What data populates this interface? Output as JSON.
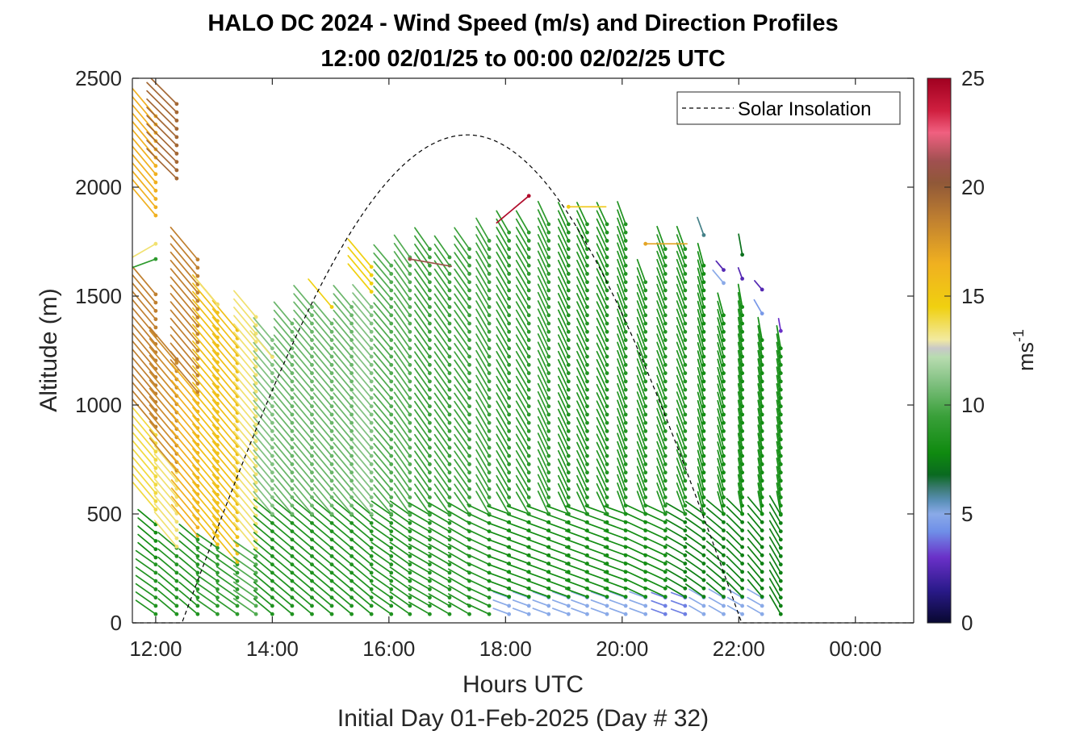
{
  "chart_data": {
    "type": "wind-barb-profile",
    "title": "HALO DC 2024 - Wind Speed (m/s) and Direction Profiles",
    "subtitle": "12:00 02/01/25 to 00:00 02/02/25  UTC",
    "xlabel": "Hours UTC",
    "xlabel2": "Initial Day 01-Feb-2025 (Day # 32)",
    "ylabel": "Altitude (m)",
    "xlim": [
      11.6,
      25.0
    ],
    "ylim": [
      0,
      2500
    ],
    "x_ticks": [
      {
        "value": 12,
        "label": "12:00"
      },
      {
        "value": 14,
        "label": "14:00"
      },
      {
        "value": 16,
        "label": "16:00"
      },
      {
        "value": 18,
        "label": "18:00"
      },
      {
        "value": 20,
        "label": "20:00"
      },
      {
        "value": 22,
        "label": "22:00"
      },
      {
        "value": 24,
        "label": "00:00"
      }
    ],
    "y_ticks": [
      {
        "value": 0,
        "label": "0"
      },
      {
        "value": 500,
        "label": "500"
      },
      {
        "value": 1000,
        "label": "1000"
      },
      {
        "value": 1500,
        "label": "1500"
      },
      {
        "value": 2000,
        "label": "2000"
      },
      {
        "value": 2500,
        "label": "2500"
      }
    ],
    "colorbar": {
      "label": "ms",
      "label_exp": "-1",
      "range": [
        0,
        25
      ],
      "ticks": [
        {
          "value": 0,
          "label": "0"
        },
        {
          "value": 5,
          "label": "5"
        },
        {
          "value": 10,
          "label": "10"
        },
        {
          "value": 15,
          "label": "15"
        },
        {
          "value": 20,
          "label": "20"
        },
        {
          "value": 25,
          "label": "25"
        }
      ],
      "stops": [
        [
          0,
          "#080830"
        ],
        [
          1.5,
          "#2a1a8a"
        ],
        [
          3,
          "#6a30c8"
        ],
        [
          4.2,
          "#6f8fe8"
        ],
        [
          5,
          "#8aaae8"
        ],
        [
          5.6,
          "#5a90b8"
        ],
        [
          6.2,
          "#3a7a70"
        ],
        [
          6.8,
          "#0a6a20"
        ],
        [
          7.8,
          "#0f8a0f"
        ],
        [
          9.5,
          "#3aa03a"
        ],
        [
          11,
          "#80c080"
        ],
        [
          12.2,
          "#b8dcb0"
        ],
        [
          12.6,
          "#c8c8c8"
        ],
        [
          13,
          "#f2eaa0"
        ],
        [
          14.5,
          "#f0d010"
        ],
        [
          16.5,
          "#f0b020"
        ],
        [
          18.5,
          "#c08030"
        ],
        [
          20.2,
          "#905838"
        ],
        [
          21.2,
          "#a05050"
        ],
        [
          22.5,
          "#f06080"
        ],
        [
          23.5,
          "#d02040"
        ],
        [
          25,
          "#a00020"
        ]
      ]
    },
    "legend": {
      "entries": [
        "Solar Insolation"
      ],
      "placement": "top-right"
    },
    "insolation": {
      "sunrise": 12.45,
      "sunset": 22.05,
      "peak_time": 17.35,
      "peak_altitude": 2240
    },
    "profiles": [
      {
        "t": 12.0,
        "segments": [
          {
            "z0": 40,
            "z1": 300,
            "dir": 305,
            "spd": 8.5,
            "dz": 38
          },
          {
            "z0": 300,
            "z1": 480,
            "dir": 310,
            "spd": 8,
            "dz": 38
          },
          {
            "z0": 520,
            "z1": 900,
            "dir": 320,
            "spd": 14,
            "dz": 38
          },
          {
            "z0": 900,
            "z1": 1540,
            "dir": 320,
            "spd": 18.5,
            "dz": 38
          },
          {
            "z0": 1870,
            "z1": 2340,
            "dir": 320,
            "spd": 16.5,
            "dz": 38
          }
        ]
      },
      {
        "t": 12.36,
        "segments": [
          {
            "z0": 40,
            "z1": 350,
            "dir": 310,
            "spd": 8.5,
            "dz": 38
          },
          {
            "z0": 350,
            "z1": 700,
            "dir": 320,
            "spd": 13.5,
            "dz": 38
          },
          {
            "z0": 700,
            "z1": 1200,
            "dir": 320,
            "spd": 18,
            "dz": 38
          },
          {
            "z0": 2040,
            "z1": 2400,
            "dir": 315,
            "spd": 19.5,
            "dz": 38
          }
        ]
      },
      {
        "t": 12.72,
        "segments": [
          {
            "z0": 40,
            "z1": 400,
            "dir": 310,
            "spd": 8.5,
            "dz": 38
          },
          {
            "z0": 400,
            "z1": 1060,
            "dir": 320,
            "spd": 16.5,
            "dz": 38
          },
          {
            "z0": 1060,
            "z1": 1690,
            "dir": 320,
            "spd": 18.5,
            "dz": 38
          }
        ]
      },
      {
        "t": 13.06,
        "segments": [
          {
            "z0": 40,
            "z1": 360,
            "dir": 305,
            "spd": 9,
            "dz": 38
          },
          {
            "z0": 360,
            "z1": 1480,
            "dir": 320,
            "spd": 15.5,
            "dz": 38
          }
        ]
      },
      {
        "t": 13.4,
        "segments": [
          {
            "z0": 40,
            "z1": 280,
            "dir": 305,
            "spd": 9,
            "dz": 38
          },
          {
            "z0": 280,
            "z1": 1370,
            "dir": 320,
            "spd": 15.5,
            "dz": 38
          }
        ]
      },
      {
        "t": 13.72,
        "segments": [
          {
            "z0": 40,
            "z1": 340,
            "dir": 305,
            "spd": 10,
            "dz": 38
          },
          {
            "z0": 340,
            "z1": 1430,
            "dir": 320,
            "spd": 13.5,
            "dz": 38
          }
        ]
      },
      {
        "t": 14.0,
        "segments": [
          {
            "z0": 40,
            "z1": 500,
            "dir": 310,
            "spd": 8.5,
            "dz": 38
          },
          {
            "z0": 500,
            "z1": 1300,
            "dir": 320,
            "spd": 11,
            "dz": 38
          }
        ]
      },
      {
        "t": 14.34,
        "segments": [
          {
            "z0": 40,
            "z1": 500,
            "dir": 310,
            "spd": 8.5,
            "dz": 38
          },
          {
            "z0": 500,
            "z1": 1400,
            "dir": 320,
            "spd": 10.5,
            "dz": 38
          }
        ]
      },
      {
        "t": 14.68,
        "segments": [
          {
            "z0": 40,
            "z1": 500,
            "dir": 310,
            "spd": 8.5,
            "dz": 38
          },
          {
            "z0": 500,
            "z1": 1450,
            "dir": 320,
            "spd": 10.5,
            "dz": 38
          }
        ]
      },
      {
        "t": 15.02,
        "segments": [
          {
            "z0": 40,
            "z1": 500,
            "dir": 310,
            "spd": 8.5,
            "dz": 38
          },
          {
            "z0": 500,
            "z1": 1400,
            "dir": 320,
            "spd": 10.5,
            "dz": 38
          }
        ]
      },
      {
        "t": 15.36,
        "segments": [
          {
            "z0": 40,
            "z1": 500,
            "dir": 310,
            "spd": 8.5,
            "dz": 38
          },
          {
            "z0": 500,
            "z1": 1450,
            "dir": 320,
            "spd": 10.5,
            "dz": 38
          }
        ]
      },
      {
        "t": 15.7,
        "segments": [
          {
            "z0": 40,
            "z1": 500,
            "dir": 310,
            "spd": 8.5,
            "dz": 38
          },
          {
            "z0": 500,
            "z1": 1460,
            "dir": 320,
            "spd": 11,
            "dz": 38
          },
          {
            "z0": 1520,
            "z1": 1640,
            "dir": 320,
            "spd": 14.5,
            "dz": 38
          }
        ]
      },
      {
        "t": 16.04,
        "segments": [
          {
            "z0": 40,
            "z1": 500,
            "dir": 305,
            "spd": 8.5,
            "dz": 38
          },
          {
            "z0": 500,
            "z1": 1650,
            "dir": 320,
            "spd": 10,
            "dz": 38
          }
        ]
      },
      {
        "t": 16.36,
        "segments": [
          {
            "z0": 40,
            "z1": 500,
            "dir": 305,
            "spd": 8.5,
            "dz": 38
          },
          {
            "z0": 500,
            "z1": 1700,
            "dir": 325,
            "spd": 10,
            "dz": 38
          }
        ]
      },
      {
        "t": 16.7,
        "segments": [
          {
            "z0": 40,
            "z1": 500,
            "dir": 300,
            "spd": 8.5,
            "dz": 38
          },
          {
            "z0": 500,
            "z1": 1720,
            "dir": 325,
            "spd": 9.5,
            "dz": 38
          }
        ]
      },
      {
        "t": 17.04,
        "segments": [
          {
            "z0": 40,
            "z1": 500,
            "dir": 300,
            "spd": 8.5,
            "dz": 38
          },
          {
            "z0": 500,
            "z1": 1690,
            "dir": 325,
            "spd": 9.5,
            "dz": 38
          }
        ]
      },
      {
        "t": 17.38,
        "segments": [
          {
            "z0": 40,
            "z1": 500,
            "dir": 300,
            "spd": 8.5,
            "dz": 38
          },
          {
            "z0": 500,
            "z1": 1720,
            "dir": 325,
            "spd": 9.5,
            "dz": 38
          }
        ]
      },
      {
        "t": 17.72,
        "segments": [
          {
            "z0": 40,
            "z1": 500,
            "dir": 295,
            "spd": 8.5,
            "dz": 38
          },
          {
            "z0": 500,
            "z1": 1760,
            "dir": 330,
            "spd": 9.5,
            "dz": 38
          }
        ]
      },
      {
        "t": 18.06,
        "segments": [
          {
            "z0": 40,
            "z1": 120,
            "dir": 290,
            "spd": 5,
            "dz": 38
          },
          {
            "z0": 120,
            "z1": 500,
            "dir": 290,
            "spd": 8,
            "dz": 38
          },
          {
            "z0": 500,
            "z1": 1800,
            "dir": 330,
            "spd": 9,
            "dz": 38
          }
        ]
      },
      {
        "t": 18.4,
        "segments": [
          {
            "z0": 40,
            "z1": 120,
            "dir": 290,
            "spd": 5,
            "dz": 38
          },
          {
            "z0": 120,
            "z1": 500,
            "dir": 290,
            "spd": 8,
            "dz": 38
          },
          {
            "z0": 500,
            "z1": 1800,
            "dir": 330,
            "spd": 9,
            "dz": 38
          }
        ]
      },
      {
        "t": 18.74,
        "segments": [
          {
            "z0": 40,
            "z1": 120,
            "dir": 290,
            "spd": 5,
            "dz": 38
          },
          {
            "z0": 120,
            "z1": 500,
            "dir": 290,
            "spd": 8,
            "dz": 38
          },
          {
            "z0": 500,
            "z1": 1850,
            "dir": 335,
            "spd": 9,
            "dz": 38
          }
        ]
      },
      {
        "t": 19.08,
        "segments": [
          {
            "z0": 40,
            "z1": 120,
            "dir": 290,
            "spd": 5,
            "dz": 38
          },
          {
            "z0": 120,
            "z1": 500,
            "dir": 290,
            "spd": 8,
            "dz": 38
          },
          {
            "z0": 500,
            "z1": 1850,
            "dir": 335,
            "spd": 8.5,
            "dz": 38
          }
        ]
      },
      {
        "t": 19.4,
        "segments": [
          {
            "z0": 40,
            "z1": 120,
            "dir": 290,
            "spd": 5,
            "dz": 38
          },
          {
            "z0": 120,
            "z1": 500,
            "dir": 290,
            "spd": 8,
            "dz": 38
          },
          {
            "z0": 500,
            "z1": 1830,
            "dir": 335,
            "spd": 8.5,
            "dz": 38
          }
        ]
      },
      {
        "t": 19.74,
        "segments": [
          {
            "z0": 40,
            "z1": 120,
            "dir": 290,
            "spd": 5,
            "dz": 38
          },
          {
            "z0": 120,
            "z1": 500,
            "dir": 290,
            "spd": 8,
            "dz": 38
          },
          {
            "z0": 500,
            "z1": 1850,
            "dir": 335,
            "spd": 8.5,
            "dz": 38
          }
        ]
      },
      {
        "t": 20.06,
        "segments": [
          {
            "z0": 40,
            "z1": 120,
            "dir": 290,
            "spd": 5,
            "dz": 38
          },
          {
            "z0": 120,
            "z1": 500,
            "dir": 290,
            "spd": 8,
            "dz": 38
          },
          {
            "z0": 500,
            "z1": 1850,
            "dir": 340,
            "spd": 8.5,
            "dz": 38
          }
        ]
      },
      {
        "t": 20.4,
        "segments": [
          {
            "z0": 40,
            "z1": 120,
            "dir": 290,
            "spd": 5,
            "dz": 38
          },
          {
            "z0": 120,
            "z1": 500,
            "dir": 295,
            "spd": 8,
            "dz": 38
          },
          {
            "z0": 500,
            "z1": 1600,
            "dir": 340,
            "spd": 8.5,
            "dz": 38
          }
        ]
      },
      {
        "t": 20.74,
        "segments": [
          {
            "z0": 40,
            "z1": 120,
            "dir": 290,
            "spd": 4,
            "dz": 38
          },
          {
            "z0": 120,
            "z1": 500,
            "dir": 295,
            "spd": 8,
            "dz": 38
          },
          {
            "z0": 500,
            "z1": 1720,
            "dir": 340,
            "spd": 8.5,
            "dz": 38
          }
        ]
      },
      {
        "t": 21.08,
        "segments": [
          {
            "z0": 40,
            "z1": 120,
            "dir": 290,
            "spd": 4,
            "dz": 38
          },
          {
            "z0": 120,
            "z1": 500,
            "dir": 300,
            "spd": 7.5,
            "dz": 38
          },
          {
            "z0": 500,
            "z1": 1720,
            "dir": 340,
            "spd": 8.5,
            "dz": 38
          }
        ]
      },
      {
        "t": 21.4,
        "segments": [
          {
            "z0": 40,
            "z1": 120,
            "dir": 300,
            "spd": 5,
            "dz": 38
          },
          {
            "z0": 120,
            "z1": 500,
            "dir": 305,
            "spd": 7.5,
            "dz": 38
          },
          {
            "z0": 500,
            "z1": 1650,
            "dir": 345,
            "spd": 8,
            "dz": 38
          }
        ]
      },
      {
        "t": 21.74,
        "segments": [
          {
            "z0": 40,
            "z1": 120,
            "dir": 300,
            "spd": 5,
            "dz": 38
          },
          {
            "z0": 120,
            "z1": 500,
            "dir": 310,
            "spd": 7.5,
            "dz": 38
          },
          {
            "z0": 500,
            "z1": 1420,
            "dir": 345,
            "spd": 8,
            "dz": 38
          }
        ]
      },
      {
        "t": 22.06,
        "segments": [
          {
            "z0": 40,
            "z1": 120,
            "dir": 300,
            "spd": 5,
            "dz": 38
          },
          {
            "z0": 120,
            "z1": 500,
            "dir": 315,
            "spd": 7.5,
            "dz": 38
          },
          {
            "z0": 500,
            "z1": 1460,
            "dir": 350,
            "spd": 8,
            "dz": 38
          }
        ]
      },
      {
        "t": 22.4,
        "segments": [
          {
            "z0": 40,
            "z1": 120,
            "dir": 300,
            "spd": 5,
            "dz": 38
          },
          {
            "z0": 120,
            "z1": 500,
            "dir": 320,
            "spd": 7.5,
            "dz": 38
          },
          {
            "z0": 500,
            "z1": 1300,
            "dir": 350,
            "spd": 8,
            "dz": 38
          }
        ]
      },
      {
        "t": 22.72,
        "segments": [
          {
            "z0": 40,
            "z1": 500,
            "dir": 330,
            "spd": 7.5,
            "dz": 38
          },
          {
            "z0": 500,
            "z1": 1260,
            "dir": 350,
            "spd": 8,
            "dz": 38
          }
        ]
      }
    ],
    "extra_barbs": [
      {
        "t": 12.0,
        "z": 1670,
        "dir": 250,
        "spd": 9
      },
      {
        "t": 12.0,
        "z": 1740,
        "dir": 240,
        "spd": 13.5
      },
      {
        "t": 12.36,
        "z": 1210,
        "dir": 320,
        "spd": 18.5
      },
      {
        "t": 13.06,
        "z": 1460,
        "dir": 320,
        "spd": 13.5
      },
      {
        "t": 14.0,
        "z": 1220,
        "dir": 320,
        "spd": 13.5
      },
      {
        "t": 15.02,
        "z": 1450,
        "dir": 320,
        "spd": 14.5
      },
      {
        "t": 16.36,
        "z": 1670,
        "dir": 100,
        "spd": 21
      },
      {
        "t": 18.4,
        "z": 1960,
        "dir": 230,
        "spd": 24.5
      },
      {
        "t": 19.08,
        "z": 1910,
        "dir": 90,
        "spd": 15
      },
      {
        "t": 20.4,
        "z": 1740,
        "dir": 90,
        "spd": 17
      },
      {
        "t": 21.4,
        "z": 1780,
        "dir": 340,
        "spd": 6
      },
      {
        "t": 21.74,
        "z": 1620,
        "dir": 320,
        "spd": 2.5
      },
      {
        "t": 21.74,
        "z": 1560,
        "dir": 320,
        "spd": 5
      },
      {
        "t": 22.06,
        "z": 1690,
        "dir": 350,
        "spd": 7
      },
      {
        "t": 22.06,
        "z": 1580,
        "dir": 340,
        "spd": 2.5
      },
      {
        "t": 22.4,
        "z": 1530,
        "dir": 320,
        "spd": 2.5
      },
      {
        "t": 22.4,
        "z": 1420,
        "dir": 330,
        "spd": 4.5
      },
      {
        "t": 22.72,
        "z": 1340,
        "dir": 350,
        "spd": 3
      }
    ]
  }
}
